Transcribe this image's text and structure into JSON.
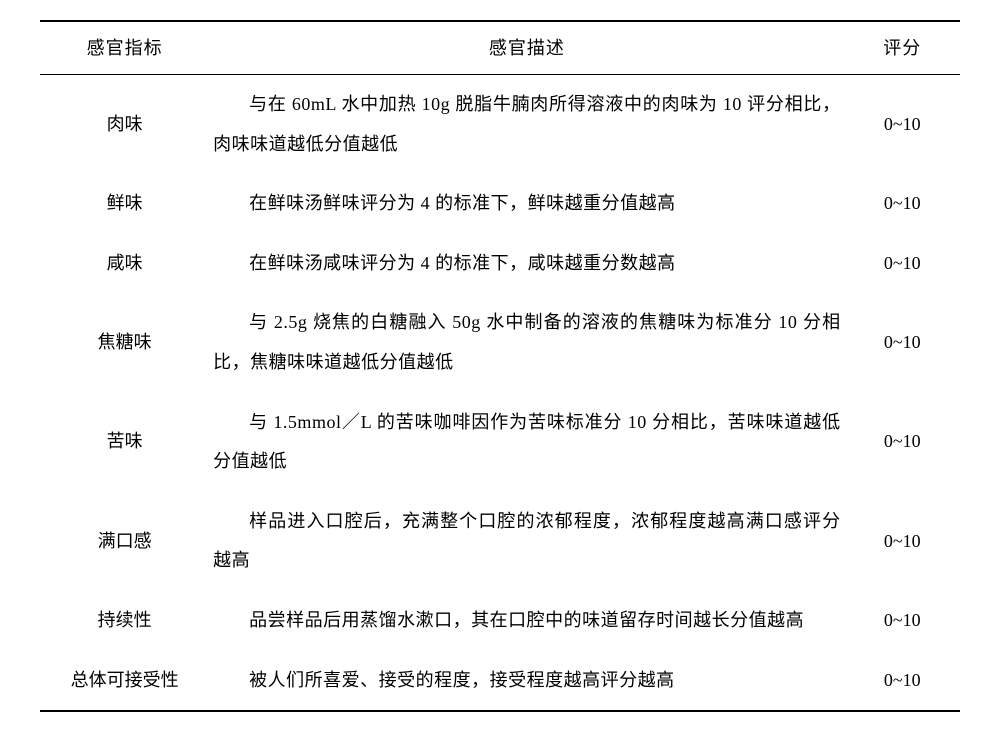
{
  "table": {
    "headers": {
      "indicator": "感官指标",
      "description": "感官描述",
      "score": "评分"
    },
    "rows": [
      {
        "indicator": "肉味",
        "description": "与在 60mL 水中加热 10g 脱脂牛腩肉所得溶液中的肉味为 10 评分相比，肉味味道越低分值越低",
        "score": "0~10"
      },
      {
        "indicator": "鲜味",
        "description": "在鲜味汤鲜味评分为 4 的标准下，鲜味越重分值越高",
        "score": "0~10"
      },
      {
        "indicator": "咸味",
        "description": "在鲜味汤咸味评分为 4 的标准下，咸味越重分数越高",
        "score": "0~10"
      },
      {
        "indicator": "焦糖味",
        "description": "与 2.5g 烧焦的白糖融入 50g 水中制备的溶液的焦糖味为标准分 10 分相比，焦糖味味道越低分值越低",
        "score": "0~10"
      },
      {
        "indicator": "苦味",
        "description": "与 1.5mmol／L 的苦味咖啡因作为苦味标准分 10 分相比，苦味味道越低分值越低",
        "score": "0~10"
      },
      {
        "indicator": "满口感",
        "description": "样品进入口腔后，充满整个口腔的浓郁程度，浓郁程度越高满口感评分越高",
        "score": "0~10"
      },
      {
        "indicator": "持续性",
        "description": "品尝样品后用蒸馏水漱口，其在口腔中的味道留存时间越长分值越高",
        "score": "0~10"
      },
      {
        "indicator": "总体可接受性",
        "description": "被人们所喜爱、接受的程度，接受程度越高评分越高",
        "score": "0~10"
      }
    ]
  }
}
